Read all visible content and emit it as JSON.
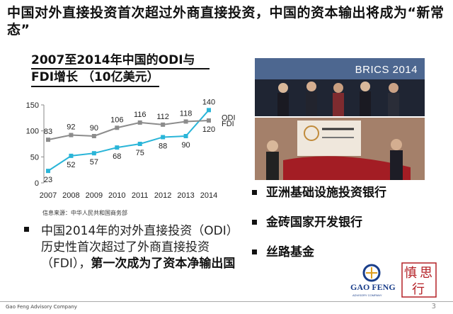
{
  "headline": "中国对外直接投资首次超过外商直接投资，中国的资本输出将成为“新常态”",
  "chart_title_line1": "2007至2014年中国的ODI与",
  "chart_title_line2": "FDI增长 （10亿美元）",
  "source": "信息来源：中华人民共和国商务部",
  "chart_data": {
    "type": "line",
    "x": [
      "2007",
      "2008",
      "2009",
      "2010",
      "2011",
      "2012",
      "2013",
      "2014"
    ],
    "ylim": [
      0,
      150
    ],
    "yticks": [
      0,
      50,
      100,
      150
    ],
    "series": [
      {
        "name": "ODI",
        "values": [
          23,
          52,
          57,
          68,
          75,
          88,
          90,
          140
        ],
        "color": "#2ab5d8"
      },
      {
        "name": "FDI",
        "values": [
          83,
          92,
          90,
          106,
          116,
          112,
          118,
          120
        ],
        "color": "#8c8c8c"
      }
    ],
    "legend_position": "right"
  },
  "left_text": {
    "plain": "中国2014年的对外直接投资（ODI）历史性首次超过了外商直接投资（FDI），",
    "bold": "第一次成为了资本净输出国"
  },
  "photo_label": "BRICS 2014",
  "right_bullets": [
    "亚洲基础设施投资银行",
    "金砖国家开发银行",
    "丝路基金"
  ],
  "logo": {
    "name": "GAO FENG",
    "sub": "ADVISORY COMPANY",
    "chinese": [
      "慎",
      "思",
      "行"
    ]
  },
  "footer": "Gao Feng Advisory Company",
  "page_number": "3"
}
